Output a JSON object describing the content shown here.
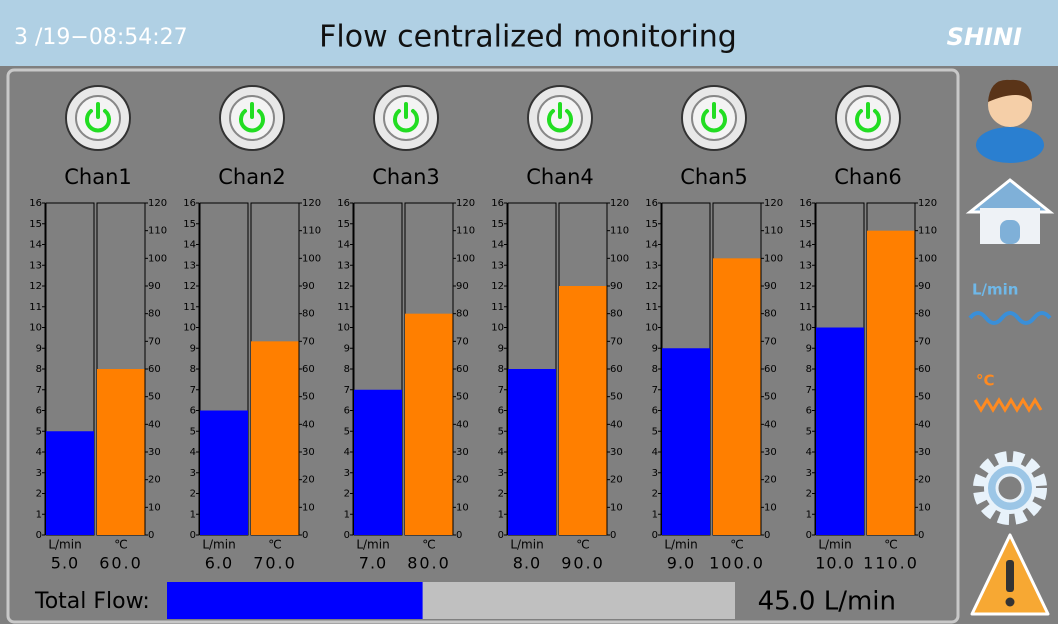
{
  "header": {
    "datetime": "3 /19−08:54:27",
    "title": "Flow centralized monitoring",
    "logo": "SHINI"
  },
  "flow_unit": "L/min",
  "temp_unit": "℃",
  "flow_range": [
    0,
    16
  ],
  "flow_ticks": [
    0,
    1,
    2,
    3,
    4,
    5,
    6,
    7,
    8,
    9,
    10,
    11,
    12,
    13,
    14,
    15,
    16
  ],
  "temp_range": [
    0,
    120
  ],
  "temp_ticks": [
    0,
    10,
    20,
    30,
    40,
    50,
    60,
    70,
    80,
    90,
    100,
    110,
    120
  ],
  "flow_color": "#0000ff",
  "temp_color": "#ff7f00",
  "channels": [
    {
      "name": "Chan1",
      "flow": 5,
      "flow_label": "5.0",
      "temp": 60,
      "temp_label": "60.0"
    },
    {
      "name": "Chan2",
      "flow": 6,
      "flow_label": "6.0",
      "temp": 70,
      "temp_label": "70.0"
    },
    {
      "name": "Chan3",
      "flow": 7,
      "flow_label": "7.0",
      "temp": 80,
      "temp_label": "80.0"
    },
    {
      "name": "Chan4",
      "flow": 8,
      "flow_label": "8.0",
      "temp": 90,
      "temp_label": "90.0"
    },
    {
      "name": "Chan5",
      "flow": 9,
      "flow_label": "9.0",
      "temp": 100,
      "temp_label": "100.0"
    },
    {
      "name": "Chan6",
      "flow": 10,
      "flow_label": "10.0",
      "temp": 110,
      "temp_label": "110.0"
    }
  ],
  "total": {
    "label": "Total Flow:",
    "value": 45,
    "value_label": "45.0 L/min",
    "range": [
      0,
      100
    ]
  },
  "sidebar": {
    "flow_label": "L/min",
    "temp_label": "°C"
  }
}
